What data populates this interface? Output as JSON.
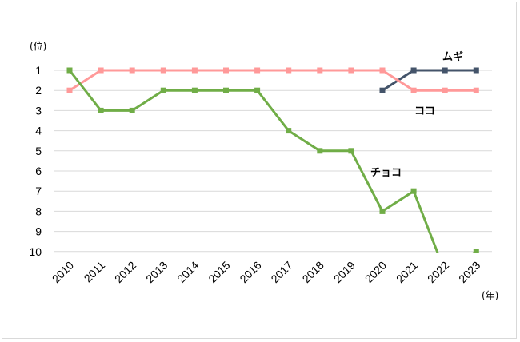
{
  "chart_data": {
    "type": "line",
    "x": [
      "2010",
      "2011",
      "2012",
      "2013",
      "2014",
      "2015",
      "2016",
      "2017",
      "2018",
      "2019",
      "2020",
      "2021",
      "2022",
      "2023"
    ],
    "y_unit_label": "(位)",
    "x_unit_label": "(年)",
    "y_ticks": [
      "1",
      "2",
      "3",
      "4",
      "5",
      "6",
      "7",
      "8",
      "9",
      "10"
    ],
    "ylim": [
      1,
      10
    ],
    "y_inverted": true,
    "grid": "horizontal",
    "series": [
      {
        "name": "ムギ",
        "color": "#44546a",
        "values": [
          null,
          null,
          null,
          null,
          null,
          null,
          null,
          null,
          null,
          null,
          2,
          1,
          1,
          1
        ]
      },
      {
        "name": "ココ",
        "color": "#ff9999",
        "values": [
          2,
          1,
          1,
          1,
          1,
          1,
          1,
          1,
          1,
          1,
          1,
          2,
          2,
          2
        ]
      },
      {
        "name": "チョコ",
        "color": "#70ad47",
        "values": [
          1,
          3,
          3,
          2,
          2,
          2,
          2,
          4,
          5,
          5,
          8,
          7,
          11,
          10
        ]
      }
    ]
  }
}
